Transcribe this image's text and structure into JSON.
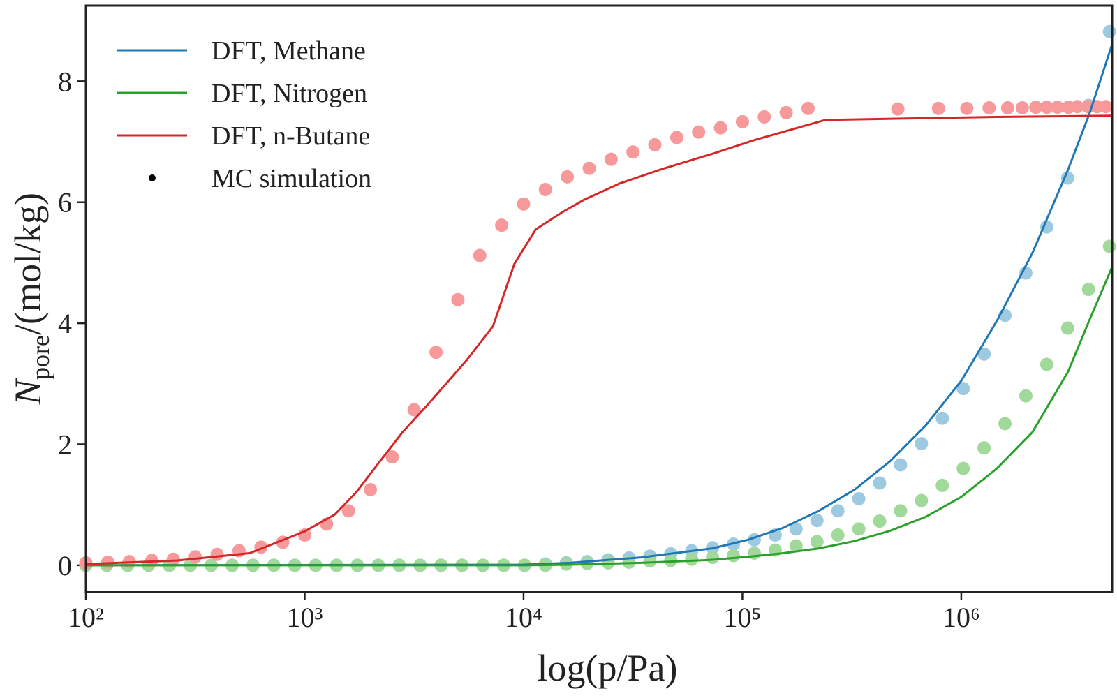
{
  "chart_data": {
    "type": "line",
    "xlabel": "log(p/Pa)",
    "ylabel": {
      "symbol": "N",
      "subscript": "pore",
      "unit": "/(mol/kg)"
    },
    "xscale": "log",
    "xlim": [
      100,
      4890000
    ],
    "ylim": [
      -0.44,
      9.25
    ],
    "xticks": [
      {
        "value": 100,
        "label": "10²"
      },
      {
        "value": 1000,
        "label": "10³"
      },
      {
        "value": 10000,
        "label": "10⁴"
      },
      {
        "value": 100000,
        "label": "10⁵"
      },
      {
        "value": 1000000,
        "label": "10⁶"
      }
    ],
    "yticks": [
      0,
      2,
      4,
      6,
      8
    ],
    "legend": "upper left",
    "series": [
      {
        "name": "DFT, Methane",
        "color": "#1f77b4",
        "x": [
          100,
          10000,
          16260,
          34430,
          72770,
          105700,
          153800,
          223600,
          325300,
          472900,
          687700,
          1000000,
          1455000,
          2113000,
          3076000,
          3848000,
          4890000
        ],
        "values": [
          0,
          0.01,
          0.04,
          0.13,
          0.28,
          0.42,
          0.62,
          0.9,
          1.25,
          1.72,
          2.31,
          3.05,
          4.04,
          5.16,
          6.54,
          7.46,
          8.61
        ]
      },
      {
        "name": "DFT, Nitrogen",
        "color": "#2ca02c",
        "x": [
          100,
          10000,
          16260,
          34430,
          72770,
          105700,
          153800,
          223600,
          325300,
          472900,
          687700,
          1000000,
          1455000,
          2113000,
          3076000,
          3848000,
          4890000
        ],
        "values": [
          0,
          0,
          0.01,
          0.04,
          0.09,
          0.14,
          0.2,
          0.28,
          0.4,
          0.57,
          0.8,
          1.13,
          1.6,
          2.2,
          3.2,
          4.05,
          4.93
        ]
      },
      {
        "name": "DFT, n-Butane",
        "color": "#d62728",
        "x": [
          100,
          265,
          560,
          1000,
          1374,
          1722,
          2155,
          2799,
          3639,
          5495,
          7248,
          9074,
          11360,
          15090,
          18890,
          27480,
          43050,
          72770,
          114000,
          239200,
          687700,
          1455000,
          4890000
        ],
        "values": [
          0.02,
          0.08,
          0.2,
          0.56,
          0.84,
          1.21,
          1.67,
          2.2,
          2.65,
          3.39,
          3.95,
          4.98,
          5.55,
          5.84,
          6.04,
          6.31,
          6.55,
          6.8,
          7.03,
          7.36,
          7.39,
          7.41,
          7.43
        ]
      }
    ],
    "scatter": {
      "name": "MC simulation",
      "legend_color": "#000000",
      "series": [
        {
          "color": "#9ecae1",
          "x": [
            100,
            124.6,
            155.2,
            193.4,
            240.9,
            300.2,
            373.9,
            465.9,
            580.2,
            722.9,
            900.6,
            1122,
            1398,
            1741,
            2169,
            2703,
            3367,
            4195,
            5226,
            6510,
            8110,
            10104,
            12587,
            15682,
            19536,
            24339,
            30320,
            37775,
            47059,
            58628,
            73038,
            90991,
            113356,
            141222,
            175931,
            219180,
            273043,
            340168,
            423768,
            527935,
            657658,
            819335,
            1020700,
            1271600,
            1584100,
            1973500,
            2458600,
            3062900,
            3815700,
            4753500
          ],
          "values": [
            0,
            0,
            0,
            0,
            0,
            0,
            0,
            0,
            0,
            0,
            0,
            0,
            0,
            0,
            0,
            0,
            0,
            0,
            0,
            0,
            0,
            0,
            0.02,
            0.04,
            0.06,
            0.09,
            0.12,
            0.15,
            0.19,
            0.24,
            0.29,
            0.35,
            0.42,
            0.5,
            0.6,
            0.74,
            0.9,
            1.1,
            1.36,
            1.66,
            2.01,
            2.43,
            2.92,
            3.49,
            4.13,
            4.83,
            5.59,
            6.4,
            7.6,
            8.82
          ]
        },
        {
          "color": "#a1d99b",
          "x": [
            100,
            124.6,
            155.2,
            193.4,
            240.9,
            300.2,
            373.9,
            465.9,
            580.2,
            722.9,
            900.6,
            1122,
            1398,
            1741,
            2169,
            2703,
            3367,
            4195,
            5226,
            6510,
            8110,
            10104,
            12587,
            15682,
            19536,
            24339,
            30320,
            37775,
            47059,
            58628,
            73038,
            90991,
            113356,
            141222,
            175931,
            219180,
            273043,
            340168,
            423768,
            527935,
            657658,
            819335,
            1020700,
            1271600,
            1584100,
            1973500,
            2458600,
            3062900,
            3815700,
            4753500
          ],
          "values": [
            0,
            0,
            0,
            0,
            0,
            0,
            0,
            0,
            0,
            0,
            0,
            0,
            0,
            0,
            0,
            0,
            0,
            0,
            0,
            0,
            0,
            0,
            0,
            0.02,
            0.03,
            0.04,
            0.05,
            0.07,
            0.08,
            0.1,
            0.13,
            0.16,
            0.2,
            0.25,
            0.32,
            0.39,
            0.5,
            0.6,
            0.73,
            0.9,
            1.07,
            1.32,
            1.6,
            1.94,
            2.34,
            2.8,
            3.32,
            3.92,
            4.56,
            5.27
          ]
        },
        {
          "color": "#f7999a",
          "x": [
            100,
            126,
            158,
            200,
            251,
            316,
            398,
            501,
            631,
            794,
            1000,
            1259,
            1585,
            1995,
            2512,
            3162,
            3981,
            5012,
            6310,
            7943,
            10000,
            12589,
            15849,
            19953,
            25119,
            31623,
            39811,
            50119,
            63096,
            79433,
            100000,
            125893,
            158489,
            199526,
            513000,
            787000,
            1060000,
            1340000,
            1630000,
            1900000,
            2190000,
            2460000,
            2750000,
            3090000,
            3390000,
            3800000,
            4170000,
            4570000
          ],
          "values": [
            0.04,
            0.05,
            0.06,
            0.08,
            0.1,
            0.14,
            0.18,
            0.24,
            0.3,
            0.38,
            0.5,
            0.68,
            0.9,
            1.25,
            1.79,
            2.57,
            3.52,
            4.39,
            5.12,
            5.62,
            5.97,
            6.21,
            6.42,
            6.56,
            6.71,
            6.83,
            6.95,
            7.07,
            7.16,
            7.23,
            7.33,
            7.41,
            7.48,
            7.55,
            7.54,
            7.55,
            7.55,
            7.56,
            7.56,
            7.56,
            7.57,
            7.57,
            7.57,
            7.57,
            7.58,
            7.58,
            7.58,
            7.58
          ]
        }
      ]
    }
  }
}
